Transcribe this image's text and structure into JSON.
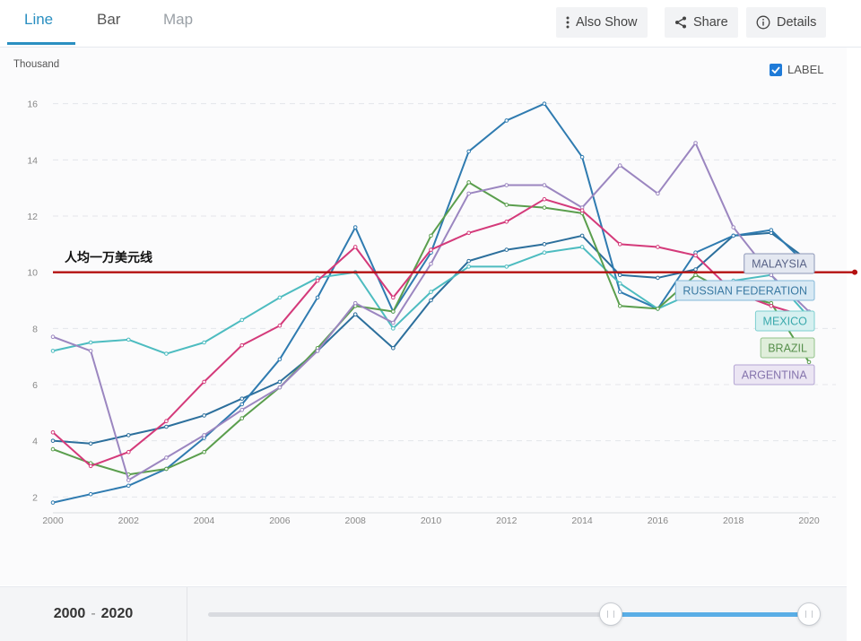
{
  "tabs": [
    {
      "label": "Line",
      "state": "active"
    },
    {
      "label": "Bar",
      "state": "normal"
    },
    {
      "label": "Map",
      "state": "disabled"
    }
  ],
  "toolbar": {
    "also_show_label": "Also Show",
    "share_label": "Share",
    "details_label": "Details"
  },
  "label_toggle": {
    "label": "LABEL",
    "checked": true
  },
  "range": {
    "start": "2000",
    "separator": "-",
    "end": "2020"
  },
  "slider": {
    "selected_start_fraction": 0.67,
    "selected_end_fraction": 1.0
  },
  "chart_data": {
    "type": "line",
    "ylabel": "Thousand",
    "xlim": [
      2000,
      2020
    ],
    "ylim": [
      1.5,
      16.5
    ],
    "x_ticks": [
      2000,
      2002,
      2004,
      2006,
      2008,
      2010,
      2012,
      2014,
      2016,
      2018,
      2020
    ],
    "y_ticks": [
      2,
      4,
      6,
      8,
      10,
      12,
      14,
      16
    ],
    "grid": true,
    "x": [
      2000,
      2001,
      2002,
      2003,
      2004,
      2005,
      2006,
      2007,
      2008,
      2009,
      2010,
      2011,
      2012,
      2013,
      2014,
      2015,
      2016,
      2017,
      2018,
      2019,
      2020
    ],
    "series": [
      {
        "name": "MALAYSIA",
        "color": "#2c6f9c",
        "values": [
          4.0,
          3.9,
          4.2,
          4.5,
          4.9,
          5.5,
          6.1,
          7.2,
          8.5,
          7.3,
          9.0,
          10.4,
          10.8,
          11.0,
          11.3,
          9.9,
          9.8,
          10.1,
          11.3,
          11.4,
          10.4
        ]
      },
      {
        "name": "RUSSIAN FEDERATION",
        "color": "#2f7bb0",
        "values": [
          1.8,
          2.1,
          2.4,
          3.0,
          4.1,
          5.3,
          6.9,
          9.1,
          11.6,
          8.6,
          10.7,
          14.3,
          15.4,
          16.0,
          14.1,
          9.3,
          8.7,
          10.7,
          11.3,
          11.5,
          10.2
        ]
      },
      {
        "name": "MEXICO",
        "color": "#4dbcc0",
        "values": [
          7.2,
          7.5,
          7.6,
          7.1,
          7.5,
          8.3,
          9.1,
          9.8,
          10.0,
          8.0,
          9.3,
          10.2,
          10.2,
          10.7,
          10.9,
          9.6,
          8.7,
          9.3,
          9.7,
          9.9,
          8.4
        ]
      },
      {
        "name": "BRAZIL",
        "color": "#5a9e4d",
        "values": [
          3.7,
          3.2,
          2.8,
          3.0,
          3.6,
          4.8,
          5.9,
          7.3,
          8.8,
          8.6,
          11.3,
          13.2,
          12.4,
          12.3,
          12.1,
          8.8,
          8.7,
          9.9,
          9.2,
          8.9,
          6.8
        ]
      },
      {
        "name": "ARGENTINA",
        "color": "#9b86c0",
        "values": [
          7.7,
          7.2,
          2.6,
          3.4,
          4.2,
          5.1,
          5.9,
          7.2,
          8.9,
          8.2,
          10.3,
          12.8,
          13.1,
          13.1,
          12.3,
          13.8,
          12.8,
          14.6,
          11.6,
          9.9,
          8.6
        ]
      },
      {
        "name": "",
        "color": "#d43a7a",
        "values": [
          4.3,
          3.1,
          3.6,
          4.7,
          6.1,
          7.4,
          8.1,
          9.7,
          10.9,
          9.1,
          10.8,
          11.4,
          11.8,
          12.6,
          12.2,
          11.0,
          10.9,
          10.6,
          9.3,
          8.8,
          8.4
        ]
      }
    ],
    "labels": [
      {
        "text": "MALAYSIA",
        "series": "MALAYSIA"
      },
      {
        "text": "RUSSIAN FEDERATION",
        "series": "RUSSIAN FEDERATION"
      },
      {
        "text": "MEXICO",
        "series": "MEXICO"
      },
      {
        "text": "BRAZIL",
        "series": "BRAZIL"
      },
      {
        "text": "ARGENTINA",
        "series": "ARGENTINA"
      }
    ],
    "reference_line": {
      "value": 10,
      "color": "#b41010",
      "label": "人均一万美元线"
    }
  }
}
